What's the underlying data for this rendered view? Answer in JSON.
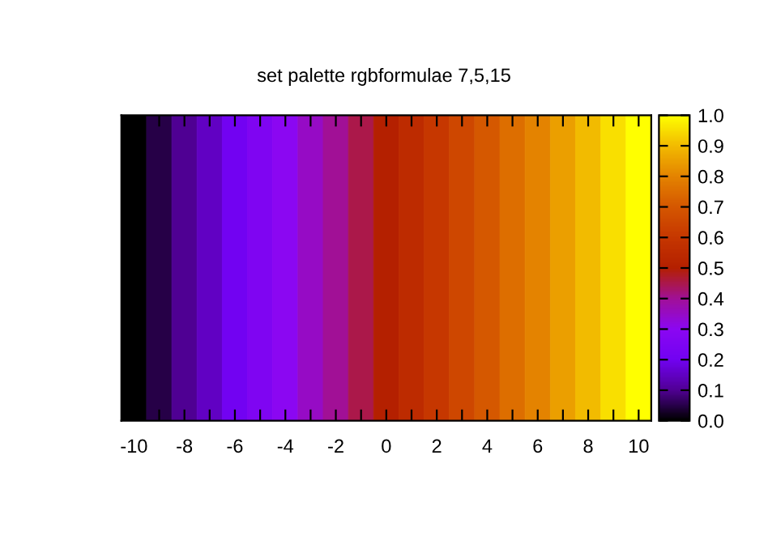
{
  "chart_data": {
    "type": "heatmap",
    "title": "set palette rgbformulae 7,5,15",
    "categories": [
      "-10",
      null,
      "-8",
      null,
      "-6",
      null,
      "-4",
      null,
      "-2",
      null,
      "0",
      null,
      "2",
      null,
      "4",
      null,
      "6",
      null,
      "8",
      null,
      "10"
    ],
    "y_categories": [
      null
    ],
    "cells": [
      [
        0.0,
        0.05,
        0.1,
        0.15,
        0.2,
        0.25,
        0.3,
        0.35,
        0.4,
        0.45,
        0.5,
        0.55,
        0.6,
        0.65,
        0.7,
        0.75,
        0.8,
        0.85,
        0.9,
        0.95,
        1.0
      ]
    ],
    "colors": [
      "#000000",
      "#510096",
      "#7202f2",
      "#8c07f2",
      "#a11096",
      "#b42000",
      "#c63700",
      "#d55700",
      "#e48300",
      "#f2ba00",
      "#ffff00"
    ],
    "clim": [
      0.0,
      1.0
    ],
    "cticks": [
      {
        "value": 0,
        "label": "0.0"
      },
      {
        "value": 0.1,
        "label": "0.1"
      },
      {
        "value": 0.2,
        "label": "0.2"
      },
      {
        "value": 0.3,
        "label": "0.3"
      },
      {
        "value": 0.4,
        "label": "0.4"
      },
      {
        "value": 0.5,
        "label": "0.5"
      },
      {
        "value": 0.6,
        "label": "0.6"
      },
      {
        "value": 0.7,
        "label": "0.7"
      },
      {
        "value": 0.8,
        "label": "0.8"
      },
      {
        "value": 0.9,
        "label": "0.9"
      },
      {
        "value": 1,
        "label": "1.0"
      }
    ],
    "tick_labels": "x"
  }
}
